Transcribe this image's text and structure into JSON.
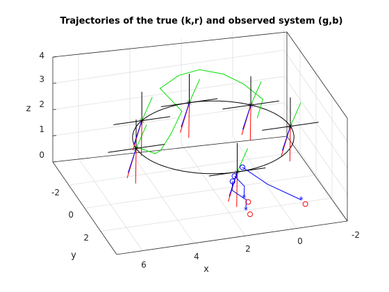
{
  "chart_data": {
    "type": "line",
    "projection": "3d",
    "title": "Trajectories of the true (k,r) and observed system (g,b)",
    "xlabel": "x",
    "ylabel": "y",
    "zlabel": "z",
    "xlim": [
      -2,
      7
    ],
    "ylim": [
      -4,
      4
    ],
    "zlim": [
      0,
      4
    ],
    "x_ticks": [
      "-2",
      "0",
      "2",
      "4",
      "6"
    ],
    "y_ticks": [
      "-2",
      "0",
      "2"
    ],
    "z_ticks": [
      "0",
      "1",
      "2",
      "3",
      "4"
    ],
    "grid": true,
    "colors": {
      "true_path": "#000000",
      "true_frame": "#ff0000",
      "observed_path": "#00e000",
      "observed_frame": "#0000ff",
      "marker_star": "#0000ff",
      "marker_circle": "#0000ff",
      "marker_red": "#ff0000",
      "axes": "#262626",
      "grid": "#dcdcdc"
    },
    "true_trajectory": {
      "name": "true (k,r)",
      "color": "black",
      "type": "circle",
      "center": [
        2,
        0,
        2
      ],
      "radius": 3
    },
    "observed_trajectory": {
      "name": "observed (g,b)",
      "color": "green",
      "points": [
        {
          "x": 5.0,
          "y": 0.0,
          "z": 2.05
        },
        {
          "x": 4.2,
          "y": -0.2,
          "z": 1.6
        },
        {
          "x": 3.8,
          "y": -0.8,
          "z": 1.4
        },
        {
          "x": 3.2,
          "y": -1.4,
          "z": 1.7
        },
        {
          "x": 2.6,
          "y": -2.0,
          "z": 2.2
        },
        {
          "x": 3.2,
          "y": -2.8,
          "z": 2.8
        },
        {
          "x": 2.4,
          "y": -3.0,
          "z": 3.1
        },
        {
          "x": 1.6,
          "y": -3.0,
          "z": 3.2
        },
        {
          "x": 0.8,
          "y": -2.6,
          "z": 3.1
        },
        {
          "x": 0.2,
          "y": -2.0,
          "z": 2.9
        },
        {
          "x": -0.3,
          "y": -1.2,
          "z": 2.6
        },
        {
          "x": 0.1,
          "y": -0.6,
          "z": 2.2
        }
      ]
    },
    "frame_poses": [
      {
        "x": 5.0,
        "y": 0.0,
        "z": 2.0
      },
      {
        "x": 4.12,
        "y": -2.12,
        "z": 2.0
      },
      {
        "x": 2.0,
        "y": -3.0,
        "z": 2.0
      },
      {
        "x": -0.12,
        "y": -2.12,
        "z": 2.0
      },
      {
        "x": -1.0,
        "y": 0.0,
        "z": 2.0
      },
      {
        "x": 2.0,
        "y": 3.0,
        "z": 2.0
      }
    ],
    "blue_tracks": [
      {
        "points": [
          {
            "x": 1.6,
            "y": 2.8,
            "z": 0.4
          },
          {
            "x": 1.4,
            "y": 2.2,
            "z": 0.5
          },
          {
            "x": 1.7,
            "y": 1.4,
            "z": 0.55
          },
          {
            "x": 1.5,
            "y": 0.8,
            "z": 0.6
          }
        ],
        "end": "star"
      },
      {
        "points": [
          {
            "x": 1.3,
            "y": 1.6,
            "z": 0.3
          },
          {
            "x": 1.1,
            "y": 1.0,
            "z": 0.45
          },
          {
            "x": 1.3,
            "y": 0.4,
            "z": 0.6
          }
        ],
        "end": "star"
      },
      {
        "points": [
          {
            "x": -0.8,
            "y": 2.0,
            "z": 0.1
          },
          {
            "x": 0.2,
            "y": 1.0,
            "z": 0.4
          },
          {
            "x": 0.8,
            "y": -0.2,
            "z": 0.6
          }
        ],
        "end": "star"
      }
    ]
  }
}
